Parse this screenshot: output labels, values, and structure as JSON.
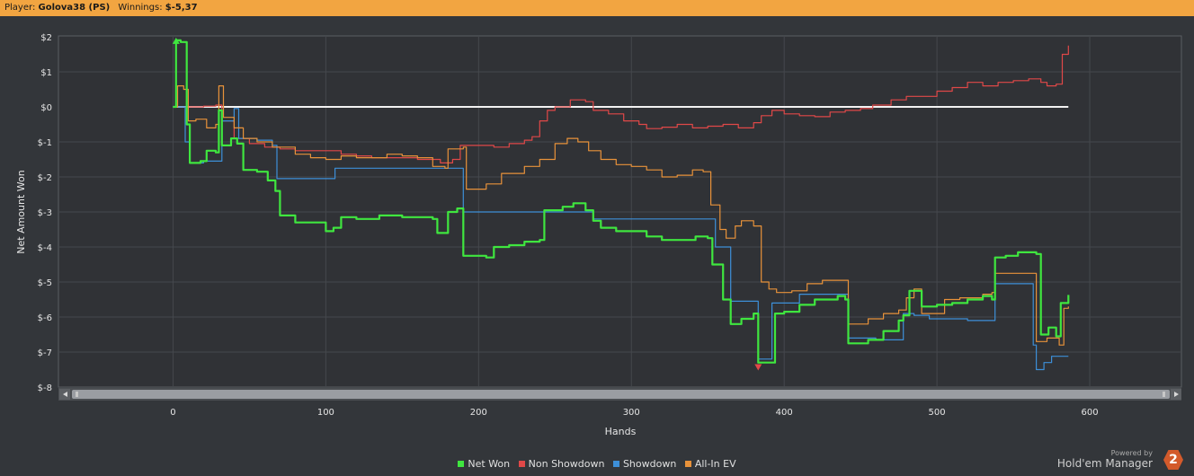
{
  "header": {
    "player_label": "Player:",
    "player_name": "Golova38 (PS)",
    "winnings_label": "Winnings:",
    "winnings_value": "$-5,37"
  },
  "branding": {
    "powered_by": "Powered by",
    "product": "Hold'em Manager",
    "logo_text": "2"
  },
  "chart_data": {
    "type": "line",
    "xlabel": "Hands",
    "ylabel": "Net Amount Won",
    "xlim": [
      -75,
      660
    ],
    "ylim": [
      -8,
      2
    ],
    "x_ticks": [
      0,
      100,
      200,
      300,
      400,
      500,
      600
    ],
    "x_tick_labels": [
      "0",
      "100",
      "200",
      "300",
      "400",
      "500",
      "600"
    ],
    "y_ticks": [
      2,
      1,
      0,
      -1,
      -2,
      -3,
      -4,
      -5,
      -6,
      -7,
      -8
    ],
    "y_tick_labels": [
      "$2",
      "$1",
      "$0",
      "$-1",
      "$-2",
      "$-3",
      "$-4",
      "$-5",
      "$-6",
      "$-7",
      "$-8"
    ],
    "grid": true,
    "legend_position": "bottom-center",
    "series": [
      {
        "name": "Non Showdown",
        "color": "#e04848",
        "points": [
          [
            0,
            0
          ],
          [
            10,
            0
          ],
          [
            20,
            0.02
          ],
          [
            28,
            0.05
          ],
          [
            32,
            -0.4
          ],
          [
            40,
            -0.9
          ],
          [
            50,
            -1.05
          ],
          [
            60,
            -1.15
          ],
          [
            70,
            -1.2
          ],
          [
            80,
            -1.25
          ],
          [
            100,
            -1.25
          ],
          [
            110,
            -1.35
          ],
          [
            120,
            -1.4
          ],
          [
            130,
            -1.45
          ],
          [
            140,
            -1.45
          ],
          [
            160,
            -1.5
          ],
          [
            175,
            -1.6
          ],
          [
            183,
            -1.5
          ],
          [
            188,
            -1.1
          ],
          [
            200,
            -1.1
          ],
          [
            210,
            -1.15
          ],
          [
            220,
            -1.05
          ],
          [
            230,
            -0.95
          ],
          [
            235,
            -0.85
          ],
          [
            240,
            -0.4
          ],
          [
            245,
            -0.1
          ],
          [
            250,
            0
          ],
          [
            260,
            0.2
          ],
          [
            270,
            0.15
          ],
          [
            275,
            -0.1
          ],
          [
            285,
            -0.2
          ],
          [
            295,
            -0.4
          ],
          [
            305,
            -0.5
          ],
          [
            310,
            -0.62
          ],
          [
            320,
            -0.58
          ],
          [
            330,
            -0.5
          ],
          [
            340,
            -0.6
          ],
          [
            350,
            -0.55
          ],
          [
            360,
            -0.5
          ],
          [
            370,
            -0.6
          ],
          [
            380,
            -0.45
          ],
          [
            385,
            -0.25
          ],
          [
            392,
            -0.1
          ],
          [
            400,
            -0.2
          ],
          [
            410,
            -0.25
          ],
          [
            420,
            -0.28
          ],
          [
            430,
            -0.15
          ],
          [
            440,
            -0.1
          ],
          [
            450,
            -0.05
          ],
          [
            458,
            0.05
          ],
          [
            470,
            0.2
          ],
          [
            480,
            0.3
          ],
          [
            490,
            0.3
          ],
          [
            500,
            0.45
          ],
          [
            510,
            0.55
          ],
          [
            520,
            0.7
          ],
          [
            530,
            0.6
          ],
          [
            540,
            0.7
          ],
          [
            550,
            0.75
          ],
          [
            560,
            0.8
          ],
          [
            568,
            0.7
          ],
          [
            572,
            0.6
          ],
          [
            578,
            0.65
          ],
          [
            582,
            1.5
          ],
          [
            586,
            1.75
          ]
        ]
      },
      {
        "name": "Showdown",
        "color": "#3d8fd8",
        "points": [
          [
            0,
            0
          ],
          [
            5,
            0
          ],
          [
            8,
            -1.0
          ],
          [
            11,
            -1.6
          ],
          [
            20,
            -1.55
          ],
          [
            30,
            -1.55
          ],
          [
            32,
            -0.4
          ],
          [
            40,
            -0.05
          ],
          [
            43,
            -0.9
          ],
          [
            55,
            -0.95
          ],
          [
            65,
            -1.1
          ],
          [
            68,
            -2.05
          ],
          [
            80,
            -2.05
          ],
          [
            105,
            -2.05
          ],
          [
            106,
            -1.75
          ],
          [
            140,
            -1.75
          ],
          [
            160,
            -1.75
          ],
          [
            183,
            -1.75
          ],
          [
            187,
            -1.75
          ],
          [
            190,
            -3.0
          ],
          [
            250,
            -3.0
          ],
          [
            270,
            -3.0
          ],
          [
            275,
            -3.2
          ],
          [
            300,
            -3.2
          ],
          [
            350,
            -3.2
          ],
          [
            352,
            -3.2
          ],
          [
            355,
            -4.0
          ],
          [
            362,
            -4.0
          ],
          [
            365,
            -5.55
          ],
          [
            380,
            -5.55
          ],
          [
            383,
            -7.2
          ],
          [
            390,
            -7.2
          ],
          [
            392,
            -5.6
          ],
          [
            405,
            -5.6
          ],
          [
            410,
            -5.35
          ],
          [
            440,
            -5.35
          ],
          [
            442,
            -6.6
          ],
          [
            460,
            -6.65
          ],
          [
            476,
            -6.65
          ],
          [
            478,
            -5.9
          ],
          [
            485,
            -5.95
          ],
          [
            495,
            -6.05
          ],
          [
            520,
            -6.1
          ],
          [
            536,
            -6.1
          ],
          [
            538,
            -5.05
          ],
          [
            560,
            -5.05
          ],
          [
            563,
            -6.8
          ],
          [
            565,
            -7.5
          ],
          [
            570,
            -7.3
          ],
          [
            575,
            -7.12
          ],
          [
            586,
            -7.12
          ]
        ]
      },
      {
        "name": "All-In EV",
        "color": "#e8923a",
        "points": [
          [
            0,
            0
          ],
          [
            3,
            0.6
          ],
          [
            7,
            0.5
          ],
          [
            10,
            -0.4
          ],
          [
            15,
            -0.35
          ],
          [
            22,
            -0.6
          ],
          [
            28,
            -0.5
          ],
          [
            30,
            0.6
          ],
          [
            33,
            -0.3
          ],
          [
            40,
            -0.6
          ],
          [
            46,
            -0.9
          ],
          [
            55,
            -1.0
          ],
          [
            65,
            -1.15
          ],
          [
            80,
            -1.35
          ],
          [
            90,
            -1.45
          ],
          [
            100,
            -1.5
          ],
          [
            110,
            -1.4
          ],
          [
            120,
            -1.45
          ],
          [
            130,
            -1.45
          ],
          [
            140,
            -1.35
          ],
          [
            150,
            -1.4
          ],
          [
            160,
            -1.45
          ],
          [
            170,
            -1.7
          ],
          [
            178,
            -1.75
          ],
          [
            180,
            -1.2
          ],
          [
            190,
            -1.15
          ],
          [
            192,
            -2.35
          ],
          [
            205,
            -2.2
          ],
          [
            215,
            -1.9
          ],
          [
            230,
            -1.7
          ],
          [
            240,
            -1.5
          ],
          [
            250,
            -1.05
          ],
          [
            258,
            -0.9
          ],
          [
            265,
            -1.0
          ],
          [
            272,
            -1.25
          ],
          [
            280,
            -1.5
          ],
          [
            290,
            -1.65
          ],
          [
            300,
            -1.7
          ],
          [
            310,
            -1.8
          ],
          [
            320,
            -2.0
          ],
          [
            330,
            -1.95
          ],
          [
            340,
            -1.8
          ],
          [
            347,
            -1.85
          ],
          [
            352,
            -2.8
          ],
          [
            358,
            -3.5
          ],
          [
            362,
            -3.75
          ],
          [
            368,
            -3.4
          ],
          [
            372,
            -3.25
          ],
          [
            380,
            -3.4
          ],
          [
            385,
            -5.0
          ],
          [
            390,
            -5.2
          ],
          [
            395,
            -5.3
          ],
          [
            405,
            -5.25
          ],
          [
            415,
            -5.05
          ],
          [
            425,
            -4.95
          ],
          [
            440,
            -4.95
          ],
          [
            442,
            -6.2
          ],
          [
            455,
            -6.05
          ],
          [
            465,
            -5.9
          ],
          [
            475,
            -5.8
          ],
          [
            480,
            -5.45
          ],
          [
            485,
            -5.2
          ],
          [
            490,
            -5.9
          ],
          [
            505,
            -5.5
          ],
          [
            515,
            -5.45
          ],
          [
            530,
            -5.35
          ],
          [
            536,
            -5.3
          ],
          [
            538,
            -4.75
          ],
          [
            560,
            -4.75
          ],
          [
            565,
            -6.7
          ],
          [
            572,
            -6.6
          ],
          [
            580,
            -6.8
          ],
          [
            583,
            -5.75
          ],
          [
            586,
            -5.7
          ]
        ]
      },
      {
        "name": "Net Won",
        "color": "#3fe63f",
        "points": [
          [
            0,
            0
          ],
          [
            2,
            1.9
          ],
          [
            5,
            1.85
          ],
          [
            7,
            1.85
          ],
          [
            9,
            -0.5
          ],
          [
            11,
            -1.6
          ],
          [
            18,
            -1.55
          ],
          [
            22,
            -1.25
          ],
          [
            28,
            -1.3
          ],
          [
            30,
            -0.1
          ],
          [
            32,
            -1.1
          ],
          [
            38,
            -0.9
          ],
          [
            42,
            -1.05
          ],
          [
            46,
            -1.8
          ],
          [
            55,
            -1.85
          ],
          [
            62,
            -2.1
          ],
          [
            67,
            -2.4
          ],
          [
            70,
            -3.1
          ],
          [
            80,
            -3.3
          ],
          [
            95,
            -3.3
          ],
          [
            100,
            -3.55
          ],
          [
            105,
            -3.45
          ],
          [
            110,
            -3.15
          ],
          [
            120,
            -3.2
          ],
          [
            135,
            -3.1
          ],
          [
            150,
            -3.15
          ],
          [
            170,
            -3.2
          ],
          [
            173,
            -3.6
          ],
          [
            178,
            -3.6
          ],
          [
            180,
            -3.0
          ],
          [
            186,
            -2.9
          ],
          [
            190,
            -4.25
          ],
          [
            205,
            -4.3
          ],
          [
            210,
            -4.0
          ],
          [
            220,
            -3.95
          ],
          [
            230,
            -3.85
          ],
          [
            240,
            -3.8
          ],
          [
            243,
            -2.95
          ],
          [
            255,
            -2.85
          ],
          [
            262,
            -2.75
          ],
          [
            270,
            -2.95
          ],
          [
            275,
            -3.25
          ],
          [
            280,
            -3.45
          ],
          [
            290,
            -3.55
          ],
          [
            300,
            -3.55
          ],
          [
            310,
            -3.7
          ],
          [
            320,
            -3.8
          ],
          [
            335,
            -3.8
          ],
          [
            342,
            -3.7
          ],
          [
            350,
            -3.75
          ],
          [
            353,
            -4.5
          ],
          [
            360,
            -5.5
          ],
          [
            365,
            -6.2
          ],
          [
            372,
            -6.05
          ],
          [
            380,
            -5.9
          ],
          [
            383,
            -7.3
          ],
          [
            392,
            -7.3
          ],
          [
            394,
            -5.9
          ],
          [
            400,
            -5.85
          ],
          [
            410,
            -5.65
          ],
          [
            420,
            -5.5
          ],
          [
            435,
            -5.4
          ],
          [
            440,
            -5.5
          ],
          [
            442,
            -6.75
          ],
          [
            455,
            -6.65
          ],
          [
            465,
            -6.4
          ],
          [
            475,
            -6.1
          ],
          [
            478,
            -5.95
          ],
          [
            482,
            -5.25
          ],
          [
            490,
            -5.7
          ],
          [
            500,
            -5.65
          ],
          [
            510,
            -5.6
          ],
          [
            520,
            -5.5
          ],
          [
            530,
            -5.4
          ],
          [
            536,
            -5.5
          ],
          [
            538,
            -4.3
          ],
          [
            545,
            -4.25
          ],
          [
            553,
            -4.15
          ],
          [
            565,
            -4.2
          ],
          [
            568,
            -6.5
          ],
          [
            573,
            -6.3
          ],
          [
            578,
            -6.55
          ],
          [
            581,
            -5.6
          ],
          [
            586,
            -5.37
          ]
        ]
      }
    ],
    "markers": [
      {
        "series": "Net Won",
        "kind": "max",
        "x": 2,
        "y": 1.9,
        "color": "#3fe63f"
      },
      {
        "series": "Net Won",
        "kind": "min",
        "x": 383,
        "y": -7.45,
        "color": "#e04848"
      }
    ]
  }
}
